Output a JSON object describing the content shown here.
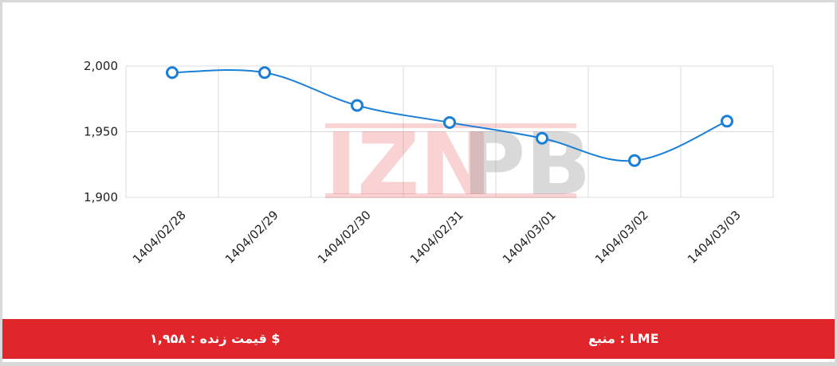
{
  "chart_data": {
    "type": "line",
    "title": "",
    "xlabel": "",
    "ylabel": "",
    "x": [
      "1404/02/28",
      "1404/02/29",
      "1404/02/30",
      "1404/02/31",
      "1404/03/01",
      "1404/03/02",
      "1404/03/03"
    ],
    "series": [
      {
        "values": [
          1995,
          1995,
          1970,
          1957,
          1945,
          1928,
          1958
        ]
      }
    ],
    "ylim": [
      1900,
      2000
    ],
    "yticks": [
      "1,900",
      "1,950",
      "2,000"
    ],
    "grid": true,
    "legend": "none",
    "colors": {
      "line": "#1c7fd6",
      "marker_fill": "#ffffff",
      "grid": "#dddddd"
    }
  },
  "watermark": {
    "text": "IZNPB",
    "colors": {
      "red": "#e8393c",
      "gray": "#8c8c8c"
    }
  },
  "footer": {
    "live_price": "قیمت زنده : ۱,۹۵۸ $",
    "source": "منبع : LME",
    "background": "#e0262a"
  }
}
